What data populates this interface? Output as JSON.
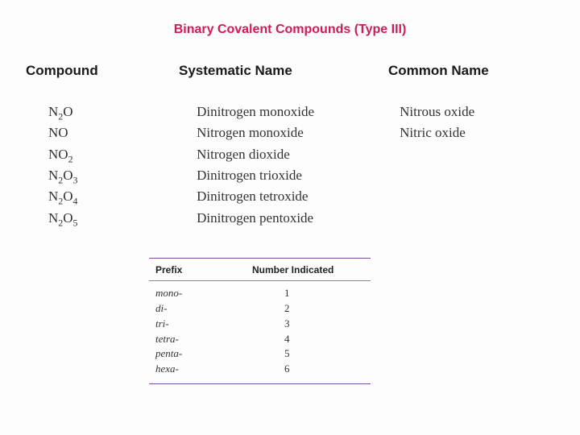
{
  "title": {
    "text": "Binary Covalent Compounds (Type III)",
    "color": "#d11a5a",
    "fontsize": 16
  },
  "columns": {
    "compound": "Compound",
    "systematic": "Systematic Name",
    "common": "Common Name"
  },
  "compounds": [
    {
      "formula_html": "N<sub>2</sub>O",
      "systematic": "Dinitrogen monoxide",
      "common": "Nitrous oxide"
    },
    {
      "formula_html": "NO",
      "systematic": "Nitrogen monoxide",
      "common": "Nitric oxide"
    },
    {
      "formula_html": "NO<sub>2</sub>",
      "systematic": "Nitrogen dioxide",
      "common": ""
    },
    {
      "formula_html": "N<sub>2</sub>O<sub>3</sub>",
      "systematic": "Dinitrogen trioxide",
      "common": ""
    },
    {
      "formula_html": "N<sub>2</sub>O<sub>4</sub>",
      "systematic": "Dinitrogen tetroxide",
      "common": ""
    },
    {
      "formula_html": "N<sub>2</sub>O<sub>5</sub>",
      "systematic": "Dinitrogen pentoxide",
      "common": ""
    }
  ],
  "prefix_table": {
    "border_color": "#7a4da0",
    "headers": {
      "prefix": "Prefix",
      "number": "Number Indicated"
    },
    "rows": [
      {
        "prefix": "mono-",
        "number": "1"
      },
      {
        "prefix": "di-",
        "number": "2"
      },
      {
        "prefix": "tri-",
        "number": "3"
      },
      {
        "prefix": "tetra-",
        "number": "4"
      },
      {
        "prefix": "penta-",
        "number": "5"
      },
      {
        "prefix": "hexa-",
        "number": "6"
      }
    ]
  }
}
